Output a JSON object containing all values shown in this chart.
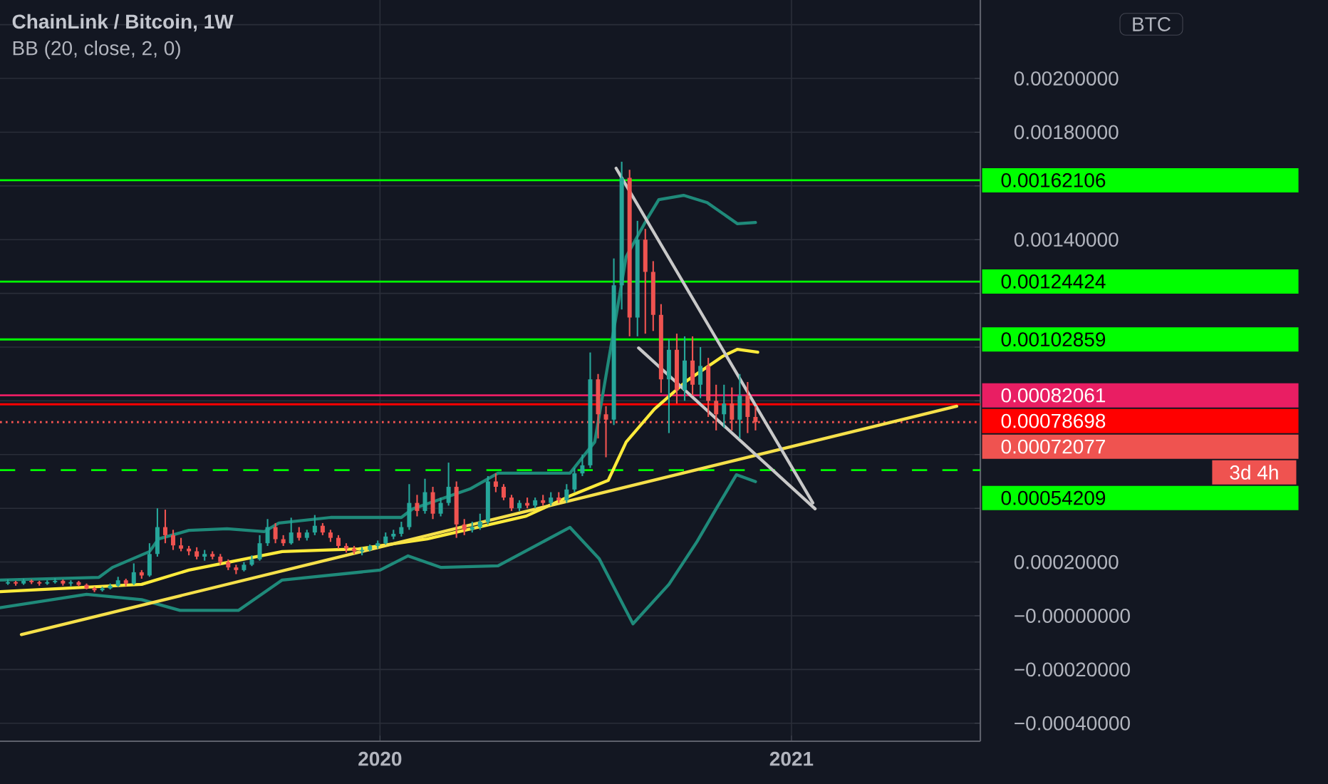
{
  "chart_data": {
    "type": "candlestick",
    "title": "ChainLink / Bitcoin, 1W",
    "subtitle": "BB (20, close, 2, 0)",
    "annotations": [
      "BTC",
      "3d 4h"
    ],
    "xlim": [
      "2019-01-28",
      "2021-06-18"
    ],
    "ylim": [
      -0.000467,
      0.002292
    ],
    "xticks": [
      {
        "value": "2020-01-01",
        "label": "2020"
      },
      {
        "value": "2021-01-01",
        "label": "2021"
      }
    ],
    "yticks": [
      {
        "value": 0.0022,
        "label": null
      },
      {
        "value": 0.002,
        "label": "0.00200000"
      },
      {
        "value": 0.0018,
        "label": "0.00180000"
      },
      {
        "value": 0.0016,
        "label": null
      },
      {
        "value": 0.0014,
        "label": "0.00140000"
      },
      {
        "value": 0.0012,
        "label": null
      },
      {
        "value": 0.001,
        "label": null
      },
      {
        "value": 0.0008,
        "label": null
      },
      {
        "value": 0.0006,
        "label": null
      },
      {
        "value": 0.0004,
        "label": null
      },
      {
        "value": 0.0002,
        "label": "0.00020000"
      },
      {
        "value": 0,
        "label": "−0.00000000"
      },
      {
        "value": -0.0002,
        "label": "−0.00020000"
      },
      {
        "value": -0.0004,
        "label": "−0.00040000"
      }
    ],
    "grid": true,
    "ref_lines": [
      {
        "axis": "y",
        "value": 0.00162106,
        "label": "0.00162106",
        "color": "#00ff00"
      },
      {
        "axis": "y",
        "value": 0.00124424,
        "label": "0.00124424",
        "color": "#00ff00"
      },
      {
        "axis": "y",
        "value": 0.00102859,
        "label": "0.00102859",
        "color": "#00ff00"
      },
      {
        "axis": "y",
        "value": 0.00082061,
        "label": "0.00082061",
        "color": "#e91e63"
      },
      {
        "axis": "y",
        "value": 0.00078698,
        "label": "0.00078698",
        "color": "#ff0000"
      },
      {
        "axis": "y",
        "value": 0.00072077,
        "label": "0.00072077",
        "color": "#ef5350",
        "line_style": "dotted"
      },
      {
        "axis": "y",
        "value": 0.00054209,
        "label": "0.00054209",
        "color": "#00ff00",
        "line_style": "dashed"
      }
    ],
    "series": [
      {
        "type": "line",
        "color": "#1f8a7a",
        "x": [
          "2019-01-28",
          "2019-04-26",
          "2019-05-08",
          "2019-06-10",
          "2019-06-18",
          "2019-07-15",
          "2019-08-18",
          "2019-09-20",
          "2019-10-03",
          "2019-11-18",
          "2020-01-20",
          "2020-01-30",
          "2020-03-21",
          "2020-04-15",
          "2020-06-18",
          "2020-07-10",
          "2020-08-07",
          "2020-08-26",
          "2020-09-05",
          "2020-09-27",
          "2020-10-18",
          "2020-11-14",
          "2020-11-30"
        ],
        "values": [
          0.000133,
          0.000143,
          0.00018,
          0.000239,
          0.000286,
          0.000318,
          0.000324,
          0.000313,
          0.000345,
          0.000366,
          0.000366,
          0.000398,
          0.000472,
          0.000531,
          0.000531,
          0.000647,
          0.001337,
          0.00148,
          0.001549,
          0.001565,
          0.001538,
          0.001459,
          0.001464
        ]
      },
      {
        "type": "line",
        "color": "#1f8a7a",
        "x": [
          "2019-01-28",
          "2019-04-15",
          "2019-06-03",
          "2019-07-07",
          "2019-08-28",
          "2019-10-06",
          "2020-01-01",
          "2020-01-26",
          "2020-02-24",
          "2020-04-15",
          "2020-06-18",
          "2020-07-14",
          "2020-08-13",
          "2020-09-14",
          "2020-10-09",
          "2020-10-26",
          "2020-11-13",
          "2020-11-30"
        ],
        "values": [
          3e-05,
          8e-05,
          6e-05,
          2e-05,
          2e-05,
          0.000133,
          0.00017,
          0.000223,
          0.00018,
          0.000186,
          0.000329,
          0.000212,
          -3e-05,
          0.000117,
          0.000276,
          0.000398,
          0.000525,
          0.000499
        ]
      },
      {
        "type": "line",
        "color": "#ffeb3b",
        "x": [
          "2019-01-28",
          "2019-06-03",
          "2019-07-15",
          "2019-10-06",
          "2019-12-13",
          "2020-02-12",
          "2020-05-10",
          "2020-06-18",
          "2020-07-22",
          "2020-08-07",
          "2020-09-01",
          "2020-09-30",
          "2020-11-01",
          "2020-11-14",
          "2020-12-02"
        ],
        "values": [
          9e-05,
          0.000117,
          0.00017,
          0.000239,
          0.000249,
          0.000286,
          0.000371,
          0.000446,
          0.000504,
          0.000647,
          0.000769,
          0.000875,
          0.000966,
          0.000992,
          0.000981
        ]
      },
      {
        "type": "line",
        "color": "#f5e04a",
        "x": [
          "2019-02-16",
          "2021-05-28"
        ],
        "values": [
          -7e-05,
          0.00078
        ]
      },
      {
        "type": "line",
        "color": "#c8c8c8",
        "x": [
          "2020-07-29",
          "2021-01-20"
        ],
        "values": [
          0.001666,
          0.00042
        ]
      },
      {
        "type": "line",
        "color": "#c8c8c8",
        "x": [
          "2020-08-18",
          "2021-01-22"
        ],
        "values": [
          0.000997,
          0.000398
        ]
      },
      {
        "color": "#26a69a",
        "x": [
          "2019-02-04",
          "2019-02-18",
          "2019-03-11",
          "2019-03-18",
          "2019-04-01",
          "2019-04-29",
          "2019-05-06",
          "2019-05-13",
          "2019-05-27",
          "2019-06-10",
          "2019-06-17",
          "2019-07-29",
          "2019-09-02",
          "2019-09-09",
          "2019-09-16",
          "2019-09-23",
          "2019-10-14",
          "2019-10-28",
          "2019-11-04",
          "2019-12-16",
          "2019-12-23",
          "2019-12-30",
          "2020-01-06",
          "2020-01-13",
          "2020-01-20",
          "2020-01-27",
          "2020-02-10",
          "2020-02-24",
          "2020-03-02",
          "2020-03-23",
          "2020-03-30",
          "2020-04-06",
          "2020-05-04",
          "2020-05-18",
          "2020-06-01",
          "2020-06-15",
          "2020-06-22",
          "2020-06-29",
          "2020-07-06",
          "2020-07-27",
          "2020-08-03",
          "2020-08-17",
          "2020-09-14",
          "2020-09-28",
          "2020-10-12",
          "2020-11-02",
          "2020-11-16"
        ],
        "ohlc": [
          [
            0.00012,
            0.000135,
            0.000115,
            0.000125
          ],
          [
            0.00012,
            0.000138,
            0.000115,
            0.00013
          ],
          [
            0.00012,
            0.000132,
            0.000115,
            0.000125
          ],
          [
            0.000125,
            0.00014,
            0.00012,
            0.00013
          ],
          [
            0.00012,
            0.000132,
            0.00011,
            0.000125
          ],
          [
            9.5e-05,
            0.000108,
            9e-05,
            0.000102
          ],
          [
            0.000102,
            0.00012,
            9.8e-05,
            0.000112
          ],
          [
            0.000112,
            0.000145,
            0.000108,
            0.000132
          ],
          [
            0.00012,
            0.000195,
            0.000115,
            0.000162
          ],
          [
            0.00015,
            0.00027,
            0.000145,
            0.00023
          ],
          [
            0.00023,
            0.0004,
            0.00022,
            0.00033
          ],
          [
            0.00022,
            0.000245,
            0.000205,
            0.00023
          ],
          [
            0.00017,
            0.0002,
            0.000165,
            0.00019
          ],
          [
            0.00019,
            0.000225,
            0.000185,
            0.00021
          ],
          [
            0.00021,
            0.0003,
            0.000205,
            0.00027
          ],
          [
            0.00027,
            0.00036,
            0.00026,
            0.00033
          ],
          [
            0.00027,
            0.000365,
            0.000265,
            0.00031
          ],
          [
            0.00029,
            0.00032,
            0.00028,
            0.00031
          ],
          [
            0.00031,
            0.000375,
            0.0003,
            0.000335
          ],
          [
            0.00024,
            0.000255,
            0.000225,
            0.000245
          ],
          [
            0.000245,
            0.000265,
            0.00024,
            0.00026
          ],
          [
            0.00026,
            0.00028,
            0.00025,
            0.00027
          ],
          [
            0.00027,
            0.00031,
            0.000265,
            0.000295
          ],
          [
            0.000295,
            0.00032,
            0.000285,
            0.000305
          ],
          [
            0.000305,
            0.00035,
            0.000295,
            0.00033
          ],
          [
            0.00033,
            0.00049,
            0.00032,
            0.00042
          ],
          [
            0.00039,
            0.00051,
            0.00038,
            0.00046
          ],
          [
            0.00038,
            0.00044,
            0.00037,
            0.00042
          ],
          [
            0.00042,
            0.00057,
            0.00041,
            0.00048
          ],
          [
            0.00032,
            0.00035,
            0.00031,
            0.00033
          ],
          [
            0.00033,
            0.00038,
            0.00032,
            0.00035
          ],
          [
            0.00035,
            0.00052,
            0.00034,
            0.0005
          ],
          [
            0.0004,
            0.00043,
            0.00039,
            0.00042
          ],
          [
            0.00041,
            0.00044,
            0.0004,
            0.00043
          ],
          [
            0.00042,
            0.00046,
            0.00041,
            0.00044
          ],
          [
            0.00043,
            0.00049,
            0.00042,
            0.00047
          ],
          [
            0.00047,
            0.00055,
            0.00046,
            0.00053
          ],
          [
            0.00053,
            0.0006,
            0.00052,
            0.00056
          ],
          [
            0.00056,
            0.00098,
            0.00055,
            0.00088
          ],
          [
            0.00073,
            0.00133,
            0.00071,
            0.00123
          ],
          [
            0.00123,
            0.00169,
            0.00114,
            0.00163
          ],
          [
            0.00111,
            0.00147,
            0.00104,
            0.0014
          ],
          [
            0.00088,
            0.00103,
            0.00068,
            0.00099
          ],
          [
            0.00084,
            0.00104,
            0.0008,
            0.00095
          ],
          [
            0.00086,
            0.001,
            0.00081,
            0.00093
          ],
          [
            0.00075,
            0.00086,
            0.0007,
            0.00079
          ],
          [
            0.00073,
            0.0009,
            0.00066,
            0.00082
          ]
        ]
      },
      {
        "color": "#ef5350",
        "x": [
          "2019-02-11",
          "2019-02-25",
          "2019-03-04",
          "2019-03-25",
          "2019-04-08",
          "2019-04-15",
          "2019-04-22",
          "2019-05-20",
          "2019-06-03",
          "2019-06-24",
          "2019-07-01",
          "2019-07-08",
          "2019-07-15",
          "2019-07-22",
          "2019-08-05",
          "2019-08-12",
          "2019-08-19",
          "2019-08-26",
          "2019-09-30",
          "2019-10-07",
          "2019-10-21",
          "2019-11-11",
          "2019-11-18",
          "2019-11-25",
          "2019-12-02",
          "2019-12-09",
          "2020-02-03",
          "2020-02-17",
          "2020-03-09",
          "2020-03-16",
          "2020-04-13",
          "2020-04-20",
          "2020-04-27",
          "2020-05-11",
          "2020-05-25",
          "2020-06-08",
          "2020-07-13",
          "2020-07-20",
          "2020-08-10",
          "2020-08-24",
          "2020-08-31",
          "2020-09-07",
          "2020-09-21",
          "2020-10-05",
          "2020-10-19",
          "2020-10-26",
          "2020-11-09",
          "2020-11-23",
          "2020-11-30"
        ],
        "ohlc": [
          [
            0.000125,
            0.00013,
            0.000112,
            0.00012
          ],
          [
            0.00013,
            0.000135,
            0.000118,
            0.000125
          ],
          [
            0.000125,
            0.00013,
            0.000112,
            0.00012
          ],
          [
            0.00013,
            0.000135,
            0.000112,
            0.00012
          ],
          [
            0.000125,
            0.00013,
            0.00011,
            0.000115
          ],
          [
            0.000115,
            0.00012,
            9.8e-05,
            0.000102
          ],
          [
            0.000102,
            0.000108,
            8.8e-05,
            9.5e-05
          ],
          [
            0.000132,
            0.000138,
            0.00011,
            0.00012
          ],
          [
            0.000162,
            0.00017,
            0.000138,
            0.00015
          ],
          [
            0.00033,
            0.000395,
            0.00027,
            0.0003
          ],
          [
            0.0003,
            0.00032,
            0.000245,
            0.000262
          ],
          [
            0.000262,
            0.00029,
            0.00024,
            0.00025
          ],
          [
            0.00025,
            0.00026,
            0.000225,
            0.00024
          ],
          [
            0.00024,
            0.000255,
            0.00021,
            0.00022
          ],
          [
            0.00023,
            0.00024,
            0.00021,
            0.00022
          ],
          [
            0.00022,
            0.00023,
            0.00019,
            0.0002
          ],
          [
            0.0002,
            0.00021,
            0.00017,
            0.00018
          ],
          [
            0.00018,
            0.00019,
            0.000155,
            0.00017
          ],
          [
            0.00033,
            0.000345,
            0.00027,
            0.000285
          ],
          [
            0.000285,
            0.0003,
            0.00026,
            0.00027
          ],
          [
            0.00031,
            0.00033,
            0.00028,
            0.00029
          ],
          [
            0.000335,
            0.000345,
            0.0003,
            0.00031
          ],
          [
            0.00031,
            0.00032,
            0.000275,
            0.00029
          ],
          [
            0.00029,
            0.0003,
            0.00025,
            0.00026
          ],
          [
            0.00026,
            0.00027,
            0.000235,
            0.00025
          ],
          [
            0.00025,
            0.00026,
            0.00023,
            0.00024
          ],
          [
            0.00042,
            0.00045,
            0.00037,
            0.00039
          ],
          [
            0.00046,
            0.00048,
            0.00036,
            0.00038
          ],
          [
            0.00048,
            0.0005,
            0.00029,
            0.00034
          ],
          [
            0.00034,
            0.00036,
            0.0003,
            0.00032
          ],
          [
            0.0005,
            0.00053,
            0.00046,
            0.00048
          ],
          [
            0.00048,
            0.00049,
            0.00043,
            0.00044
          ],
          [
            0.00044,
            0.00045,
            0.00039,
            0.0004
          ],
          [
            0.00042,
            0.00044,
            0.0004,
            0.00041
          ],
          [
            0.00043,
            0.00045,
            0.00041,
            0.00042
          ],
          [
            0.00044,
            0.00046,
            0.00042,
            0.00043
          ],
          [
            0.00088,
            0.0009,
            0.00066,
            0.00075
          ],
          [
            0.00075,
            0.00078,
            0.00059,
            0.00073
          ],
          [
            0.00163,
            0.00166,
            0.00104,
            0.00111
          ],
          [
            0.0014,
            0.00144,
            0.00105,
            0.00128
          ],
          [
            0.00128,
            0.00132,
            0.00106,
            0.00112
          ],
          [
            0.00112,
            0.00116,
            0.00083,
            0.00088
          ],
          [
            0.00099,
            0.00105,
            0.00079,
            0.00084
          ],
          [
            0.00095,
            0.00104,
            0.00082,
            0.00086
          ],
          [
            0.00093,
            0.00096,
            0.00074,
            0.0008
          ],
          [
            0.0008,
            0.00086,
            0.00069,
            0.00075
          ],
          [
            0.00079,
            0.00085,
            0.00069,
            0.00073
          ],
          [
            0.00082,
            0.00087,
            0.00068,
            0.00074
          ],
          [
            0.00074,
            0.00078,
            0.00069,
            0.00072077
          ]
        ]
      }
    ]
  }
}
